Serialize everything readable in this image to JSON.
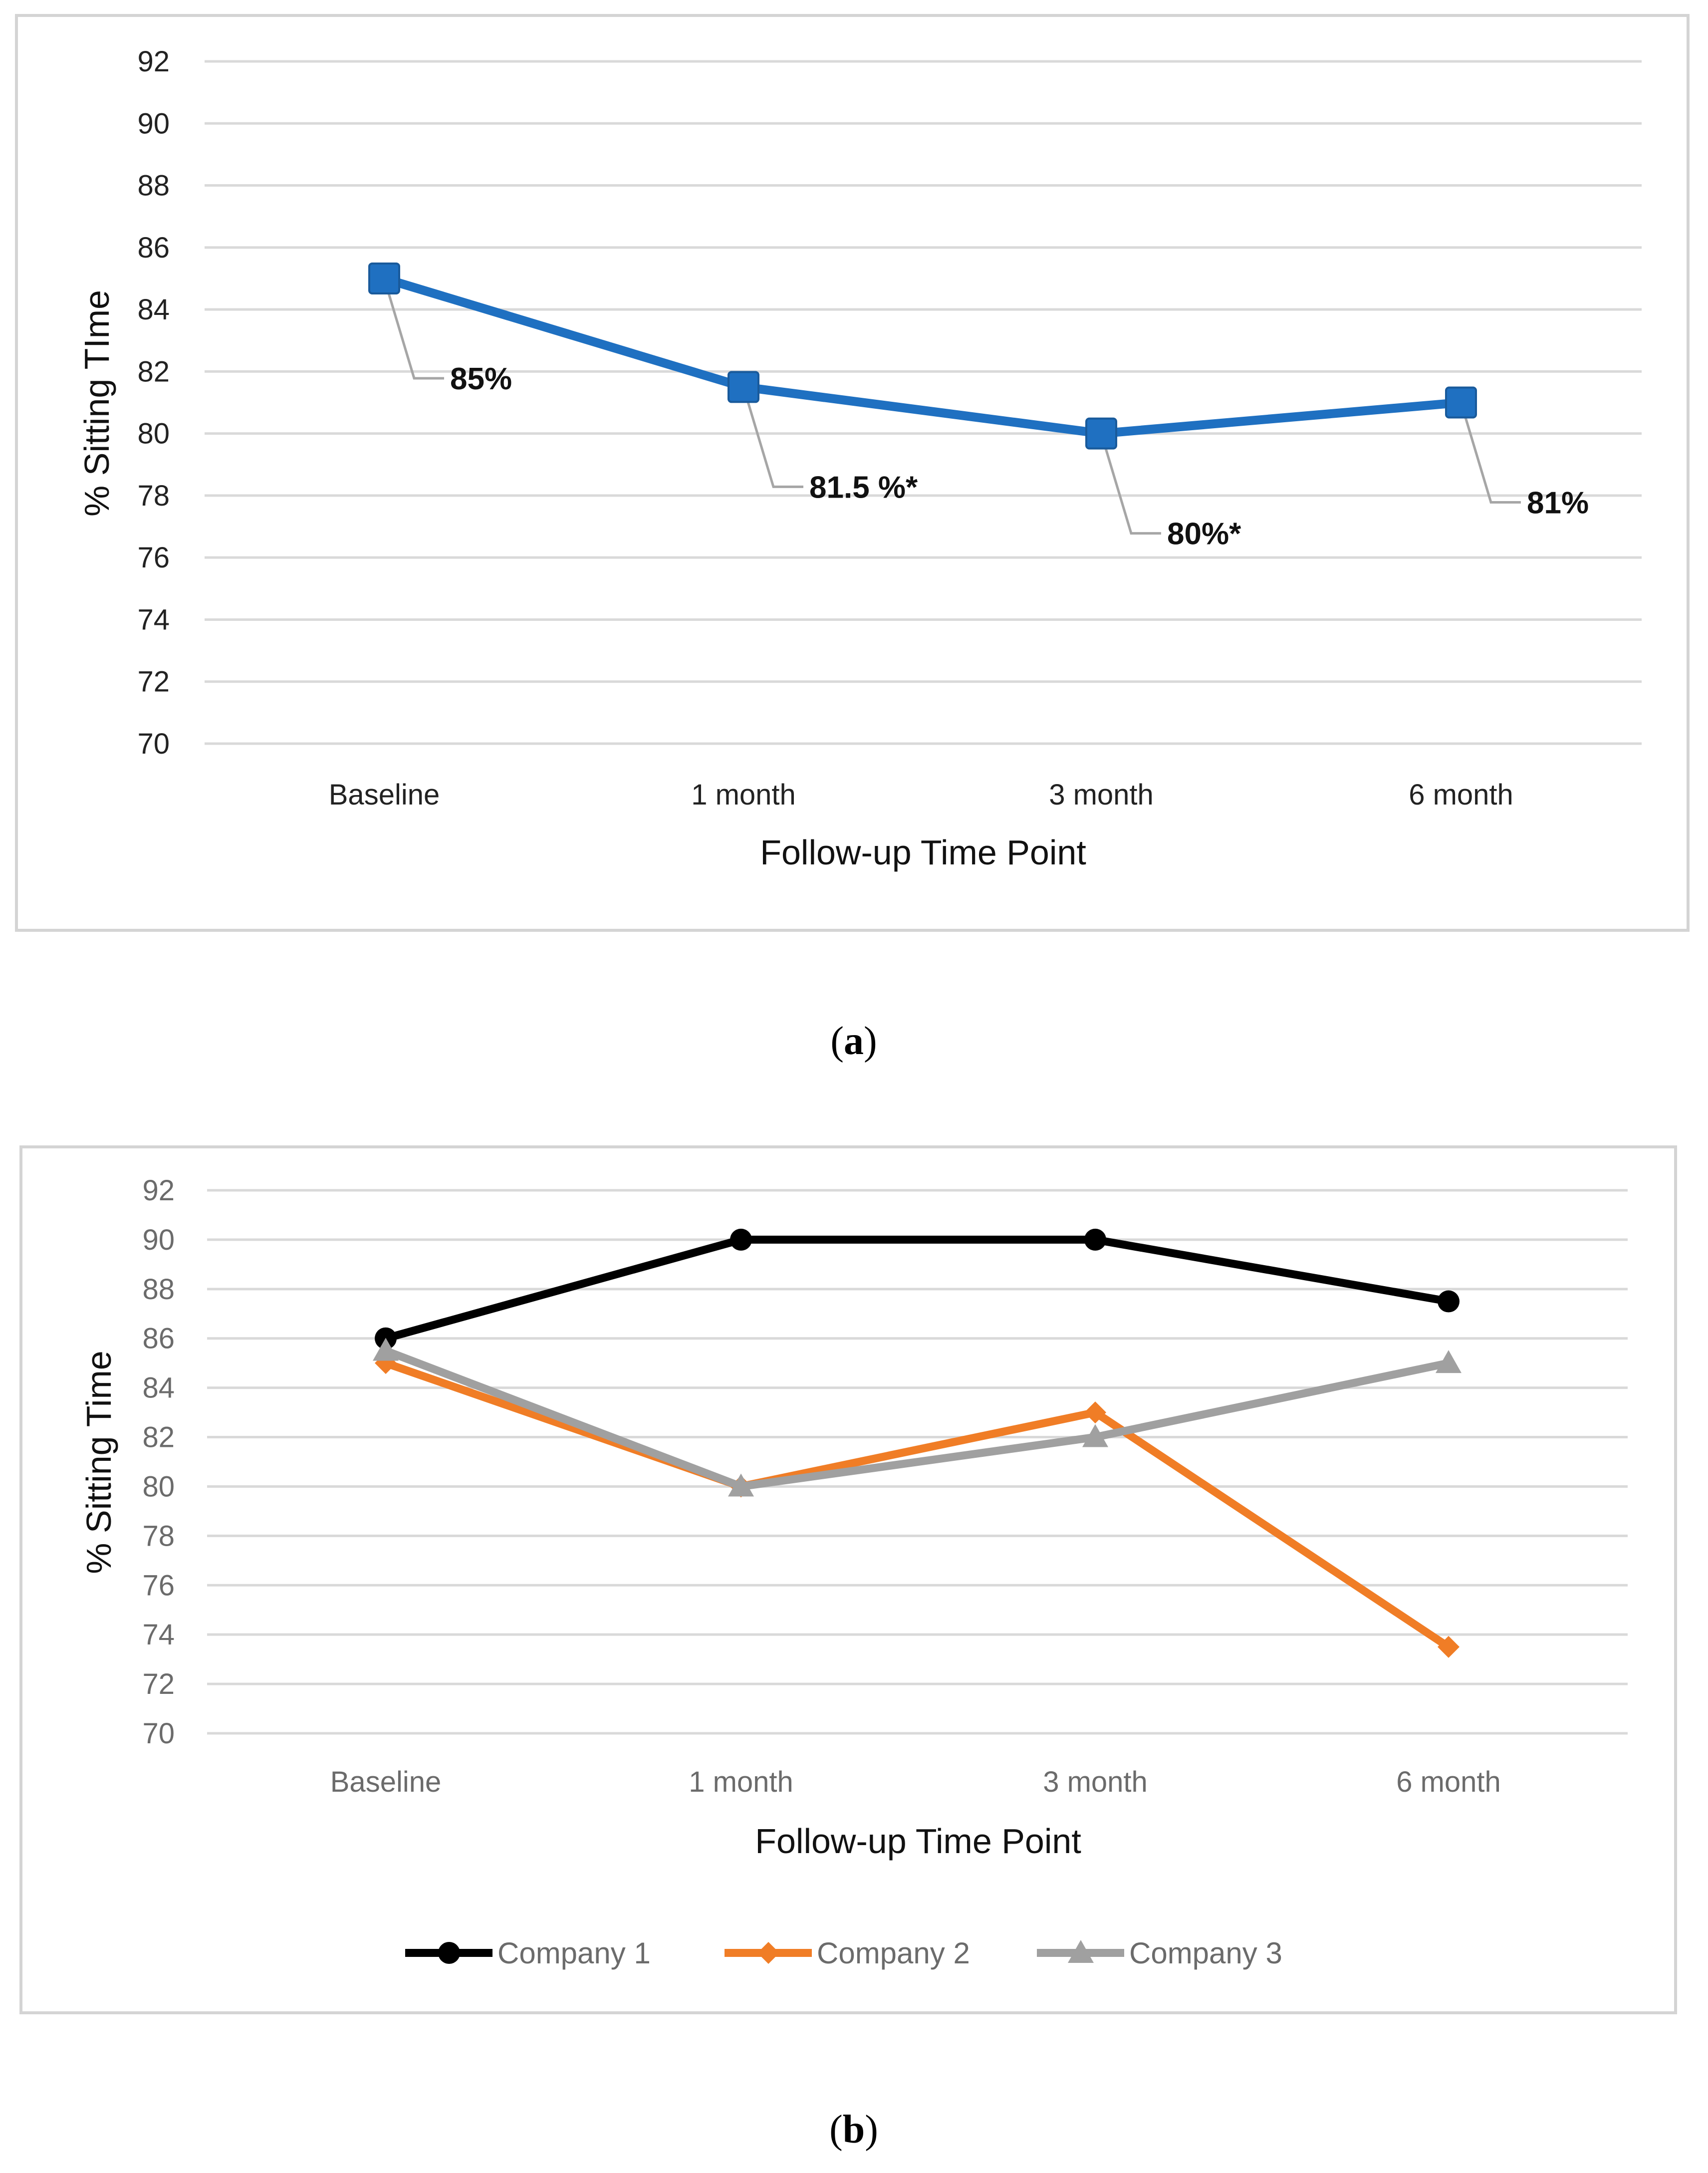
{
  "chart_data": [
    {
      "type": "line",
      "panel_label": "a",
      "categories": [
        "Baseline",
        "1 month",
        "3 month",
        "6 month"
      ],
      "series": [
        {
          "values": [
            85,
            81.5,
            80,
            81
          ],
          "color": "#1f70c1",
          "marker": "square"
        }
      ],
      "data_labels": [
        "85%",
        "81.5 %*",
        "80%*",
        "81%"
      ],
      "xlabel": "Follow-up Time Point",
      "ylabel": "% Sitting TIme",
      "ylim": [
        70,
        92
      ],
      "yticks": [
        70,
        72,
        74,
        76,
        78,
        80,
        82,
        84,
        86,
        88,
        90,
        92
      ],
      "grid": true,
      "legend": "none"
    },
    {
      "type": "line",
      "panel_label": "b",
      "categories": [
        "Baseline",
        "1 month",
        "3 month",
        "6 month"
      ],
      "series": [
        {
          "name": "Company 1",
          "values": [
            86,
            90,
            90,
            87.5
          ],
          "color": "#000000",
          "marker": "circle"
        },
        {
          "name": "Company 2",
          "values": [
            85,
            80,
            83,
            73.5
          ],
          "color": "#f07d26",
          "marker": "diamond"
        },
        {
          "name": "Company 3",
          "values": [
            85.5,
            80,
            82,
            85
          ],
          "color": "#a0a0a0",
          "marker": "triangle"
        }
      ],
      "xlabel": "Follow-up Time Point",
      "ylabel": "% Sitting Time",
      "ylim": [
        70,
        92
      ],
      "yticks": [
        70,
        72,
        74,
        76,
        78,
        80,
        82,
        84,
        86,
        88,
        90,
        92
      ],
      "grid": true,
      "legend": "bottom"
    }
  ]
}
